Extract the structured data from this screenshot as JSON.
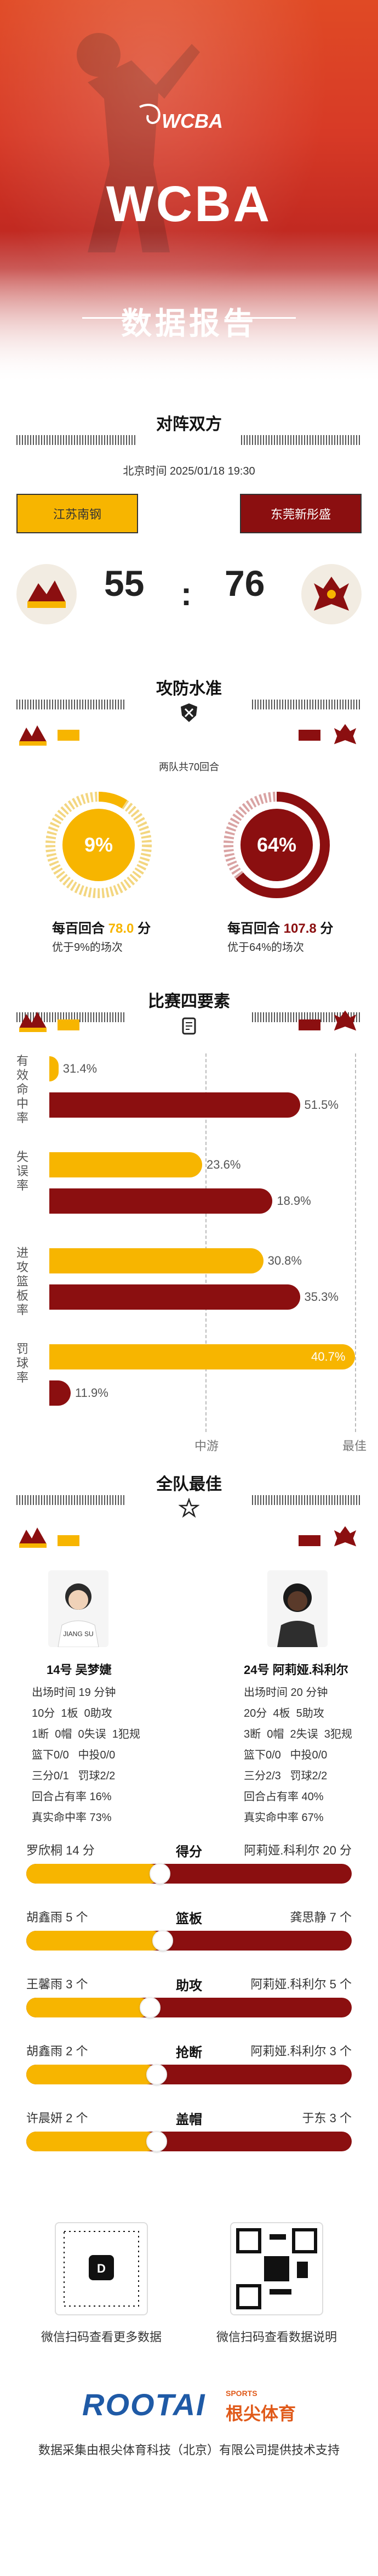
{
  "hero": {
    "title": "WCBA",
    "subtitle": "数据报告",
    "logo_text": "WCBA"
  },
  "matchup": {
    "title": "对阵双方",
    "datetime": "北京时间 2025/01/18 19:30",
    "home": "江苏南钢",
    "away": "东莞新彤盛",
    "home_score": "55",
    "separator": ":",
    "away_score": "76"
  },
  "offense": {
    "title": "攻防水准",
    "note": "两队共70回合",
    "home": {
      "pct": "9%",
      "ppp_label": "每百回合",
      "ppp_value": "78.0",
      "unit": "分",
      "desc": "优于9%的场次",
      "fraction": 0.09
    },
    "away": {
      "pct": "64%",
      "ppp_label": "每百回合",
      "ppp_value": "107.8",
      "unit": "分",
      "desc": "优于64%的场次",
      "fraction": 0.64
    }
  },
  "factors": {
    "title": "比赛四要素",
    "scale_mid": "中游",
    "scale_max": "最佳",
    "rows": [
      {
        "label": "有效命中率",
        "home": "31.4%",
        "away": "51.5%",
        "home_frac": 0.03,
        "away_frac": 0.82
      },
      {
        "label": "失误率",
        "home": "23.6%",
        "away": "18.9%",
        "home_frac": 0.5,
        "away_frac": 0.73
      },
      {
        "label": "进攻篮板率",
        "home": "30.8%",
        "away": "35.3%",
        "home_frac": 0.7,
        "away_frac": 0.82
      },
      {
        "label": "罚球率",
        "home": "40.7%",
        "away": "11.9%",
        "home_frac": 1.0,
        "away_frac": 0.07
      }
    ]
  },
  "best": {
    "title": "全队最佳",
    "home_player": {
      "name": "14号 吴梦婕",
      "stats": [
        "出场时间 19 分钟",
        "10分  1板  0助攻",
        "1断  0帽  0失误  1犯规",
        "篮下0/0   中投0/0",
        "三分0/1   罚球2/2",
        "回合占有率 16%",
        "真实命中率 73%"
      ]
    },
    "away_player": {
      "name": "24号 阿莉娅.科利尔",
      "stats": [
        "出场时间 20 分钟",
        "20分  4板  5助攻",
        "3断  0帽  2失误  3犯规",
        "篮下0/0   中投0/0",
        "三分2/3   罚球2/2",
        "回合占有率 40%",
        "真实命中率 67%"
      ]
    },
    "leaders": [
      {
        "cat": "得分",
        "home": "罗欣桐 14 分",
        "away": "阿莉娅.科利尔 20 分",
        "home_frac": 0.41
      },
      {
        "cat": "篮板",
        "home": "胡鑫雨 5 个",
        "away": "龚思静 7 个",
        "home_frac": 0.42
      },
      {
        "cat": "助攻",
        "home": "王馨雨 3 个",
        "away": "阿莉娅.科利尔 5 个",
        "home_frac": 0.38
      },
      {
        "cat": "抢断",
        "home": "胡鑫雨 2 个",
        "away": "阿莉娅.科利尔 3 个",
        "home_frac": 0.4
      },
      {
        "cat": "盖帽",
        "home": "许晨妍 2 个",
        "away": "于东 3 个",
        "home_frac": 0.4
      }
    ]
  },
  "footer": {
    "qr_left": "微信扫码查看更多数据",
    "qr_right": "微信扫码查看数据说明",
    "brand": "ROOTAI",
    "brand_cn": "根尖体育",
    "brand_sports": "SPORTS",
    "credit": "数据采集由根尖体育科技（北京）有限公司提供技术支持"
  },
  "colors": {
    "home": "#f7b500",
    "away": "#8b0f10",
    "accent": "#d73a26"
  }
}
